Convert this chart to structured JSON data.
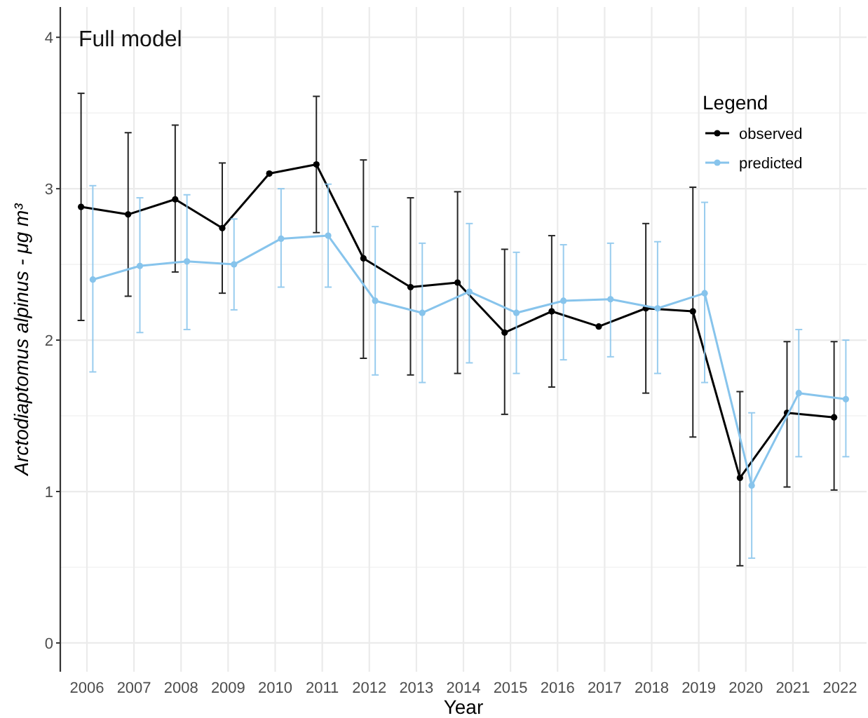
{
  "chart_data": {
    "type": "line",
    "title": "Full model",
    "xlabel": "Year",
    "ylabel": "Arctodiaptomus alpinus - μg m³",
    "legend_title": "Legend",
    "categories": [
      "2006",
      "2007",
      "2008",
      "2009",
      "2010",
      "2011",
      "2012",
      "2013",
      "2014",
      "2015",
      "2016",
      "2017",
      "2018",
      "2019",
      "2020",
      "2021",
      "2022"
    ],
    "series": [
      {
        "name": "observed",
        "color": "#000000",
        "values": [
          2.88,
          2.83,
          2.93,
          2.74,
          3.1,
          3.16,
          2.54,
          2.35,
          2.38,
          2.05,
          2.19,
          2.09,
          2.21,
          2.19,
          1.09,
          1.52,
          1.49
        ],
        "errors": [
          [
            2.13,
            3.63
          ],
          [
            2.29,
            3.37
          ],
          [
            2.45,
            3.42
          ],
          [
            2.31,
            3.17
          ],
          null,
          [
            2.71,
            3.61
          ],
          [
            1.88,
            3.19
          ],
          [
            1.77,
            2.94
          ],
          [
            1.78,
            2.98
          ],
          [
            1.51,
            2.6
          ],
          [
            1.69,
            2.69
          ],
          null,
          [
            1.65,
            2.77
          ],
          [
            1.36,
            3.01
          ],
          [
            0.51,
            1.66
          ],
          [
            1.03,
            1.99
          ],
          [
            1.01,
            1.99
          ]
        ]
      },
      {
        "name": "predicted",
        "color": "#87c4ec",
        "values": [
          2.4,
          2.49,
          2.52,
          2.5,
          2.67,
          2.69,
          2.26,
          2.18,
          2.32,
          2.18,
          2.26,
          2.27,
          2.21,
          2.31,
          1.04,
          1.65,
          1.61
        ],
        "errors": [
          [
            1.79,
            3.02
          ],
          [
            2.05,
            2.94
          ],
          [
            2.07,
            2.96
          ],
          [
            2.2,
            2.8
          ],
          [
            2.35,
            3.0
          ],
          [
            2.35,
            3.03
          ],
          [
            1.77,
            2.75
          ],
          [
            1.72,
            2.64
          ],
          [
            1.85,
            2.77
          ],
          [
            1.78,
            2.58
          ],
          [
            1.87,
            2.63
          ],
          [
            1.89,
            2.64
          ],
          [
            1.78,
            2.65
          ],
          [
            1.72,
            2.91
          ],
          [
            0.56,
            1.52
          ],
          [
            1.23,
            2.07
          ],
          [
            1.23,
            2.0
          ]
        ]
      }
    ],
    "ylim": [
      -0.19,
      4.2
    ],
    "yticks": [
      0,
      {
        "value": 0.5,
        "label": null
      },
      1,
      {
        "value": 1.5,
        "label": null
      },
      2,
      {
        "value": 2.5,
        "label": null
      },
      3,
      {
        "value": 3.5,
        "label": null
      },
      4
    ],
    "grid": true,
    "legend": "top right",
    "marker": "circle",
    "line_style": "solid"
  }
}
